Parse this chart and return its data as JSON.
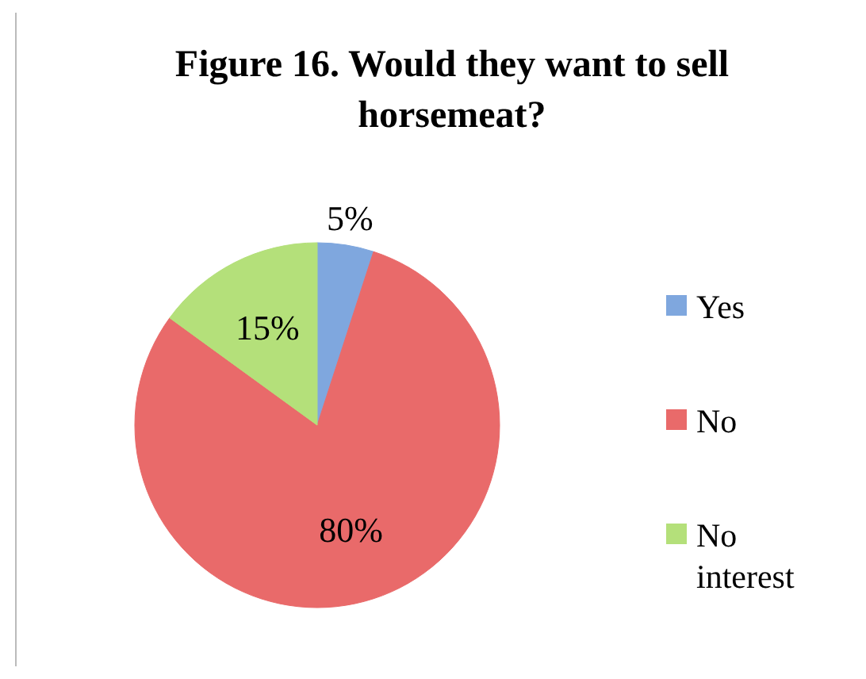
{
  "chart_data": {
    "type": "pie",
    "title": "Figure 16. Would they want to sell horsemeat?",
    "categories": [
      "Yes",
      "No",
      "No interest"
    ],
    "values": [
      5,
      80,
      15
    ],
    "colors": [
      "#7fa7de",
      "#e96a6a",
      "#b4e07a"
    ],
    "value_labels": [
      "5%",
      "80%",
      "15%"
    ],
    "legend": "right"
  }
}
